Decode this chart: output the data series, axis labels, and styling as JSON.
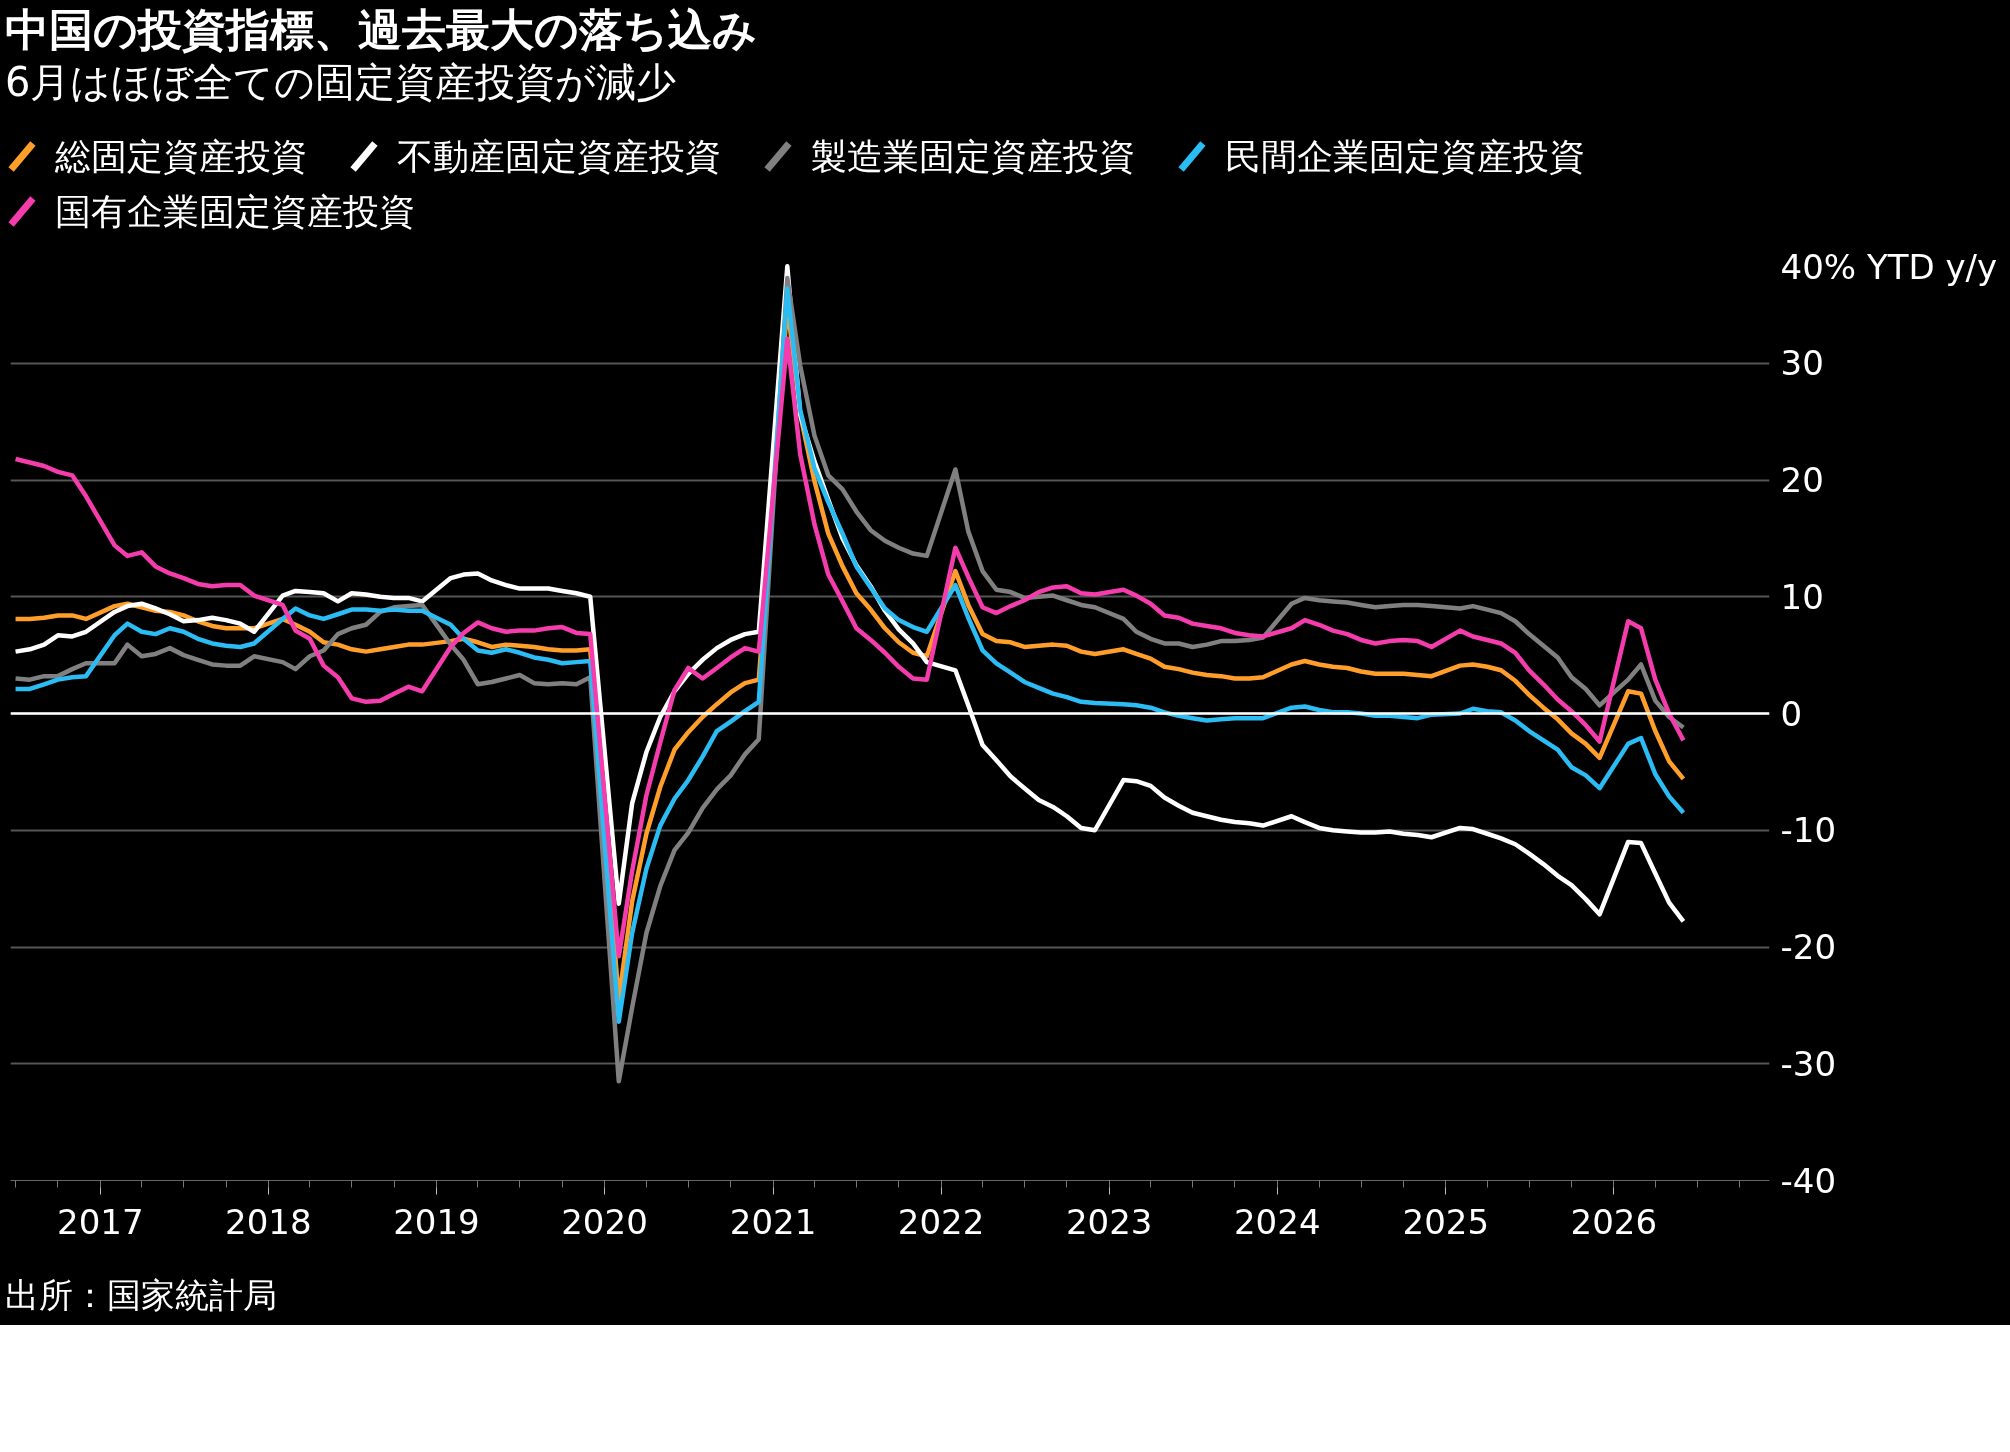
{
  "chart_data": {
    "type": "line",
    "title": "中国の投資指標、過去最大の落ち込み",
    "subtitle": "6月はほぼ全ての固定資産投資が減少",
    "annotations": [
      "出所：国家統計局"
    ],
    "x": [
      "2016-07",
      "2016-08",
      "2016-09",
      "2016-10",
      "2016-11",
      "2016-12",
      "2017-02",
      "2017-03",
      "2017-04",
      "2017-05",
      "2017-06",
      "2017-07",
      "2017-08",
      "2017-09",
      "2017-10",
      "2017-11",
      "2017-12",
      "2018-02",
      "2018-03",
      "2018-04",
      "2018-05",
      "2018-06",
      "2018-07",
      "2018-08",
      "2018-09",
      "2018-10",
      "2018-11",
      "2018-12",
      "2019-02",
      "2019-03",
      "2019-04",
      "2019-05",
      "2019-06",
      "2019-07",
      "2019-08",
      "2019-09",
      "2019-10",
      "2019-11",
      "2019-12",
      "2020-02",
      "2020-03",
      "2020-04",
      "2020-05",
      "2020-06",
      "2020-07",
      "2020-08",
      "2020-09",
      "2020-10",
      "2020-11",
      "2020-12",
      "2021-02",
      "2021-03",
      "2021-04",
      "2021-05",
      "2021-06",
      "2021-07",
      "2021-08",
      "2021-09",
      "2021-10",
      "2021-11",
      "2021-12",
      "2022-02",
      "2022-03",
      "2022-04",
      "2022-05",
      "2022-06",
      "2022-07",
      "2022-08",
      "2022-09",
      "2022-10",
      "2022-11",
      "2022-12",
      "2023-02",
      "2023-03",
      "2023-04",
      "2023-05",
      "2023-06",
      "2023-07",
      "2023-08",
      "2023-09",
      "2023-10",
      "2023-11",
      "2023-12",
      "2024-02",
      "2024-03",
      "2024-04",
      "2024-05",
      "2024-06",
      "2024-07",
      "2024-08",
      "2024-09",
      "2024-10",
      "2024-11",
      "2024-12",
      "2025-02",
      "2025-03",
      "2025-04",
      "2025-05",
      "2025-06",
      "2025-07",
      "2025-08",
      "2025-09",
      "2025-10",
      "2025-11",
      "2025-12",
      "2026-02",
      "2026-03",
      "2026-04",
      "2026-05",
      "2026-06"
    ],
    "series": [
      {
        "name": "総固定資産投資",
        "color": "#ff9f2a",
        "values": [
          8.1,
          8.1,
          8.2,
          8.4,
          8.4,
          8.1,
          9.2,
          9.4,
          9.1,
          8.8,
          8.7,
          8.4,
          7.9,
          7.5,
          7.3,
          7.3,
          7.3,
          8.1,
          7.6,
          7.0,
          6.1,
          5.9,
          5.5,
          5.3,
          5.5,
          5.7,
          5.9,
          5.9,
          6.2,
          6.4,
          6.1,
          5.7,
          5.9,
          5.8,
          5.7,
          5.5,
          5.4,
          5.4,
          5.5,
          -24.5,
          -16.1,
          -10.3,
          -6.3,
          -3.1,
          -1.6,
          -0.3,
          0.8,
          1.8,
          2.6,
          2.9,
          35.0,
          25.6,
          19.9,
          15.4,
          12.6,
          10.3,
          8.9,
          7.3,
          6.1,
          5.2,
          4.9,
          12.2,
          9.3,
          6.8,
          6.2,
          6.1,
          5.7,
          5.8,
          5.9,
          5.8,
          5.3,
          5.1,
          5.5,
          5.1,
          4.7,
          4.0,
          3.8,
          3.5,
          3.3,
          3.2,
          3.0,
          3.0,
          3.1,
          4.2,
          4.5,
          4.2,
          4.0,
          3.9,
          3.6,
          3.4,
          3.4,
          3.4,
          3.3,
          3.2,
          4.1,
          4.2,
          4.0,
          3.7,
          2.8,
          1.6,
          0.5,
          -0.5,
          -1.7,
          -2.6,
          -3.8,
          1.9,
          1.7,
          -1.5,
          -4.1,
          -5.6
        ]
      },
      {
        "name": "不動産固定資産投資",
        "color": "#ffffff",
        "values": [
          5.3,
          5.5,
          5.9,
          6.7,
          6.6,
          7.0,
          8.7,
          9.2,
          9.4,
          9.0,
          8.5,
          7.9,
          8.0,
          8.2,
          8.0,
          7.7,
          7.0,
          10.1,
          10.5,
          10.4,
          10.3,
          9.6,
          10.3,
          10.2,
          10.0,
          9.9,
          9.9,
          9.6,
          11.6,
          11.9,
          12.0,
          11.4,
          11.0,
          10.7,
          10.7,
          10.7,
          10.5,
          10.3,
          10.0,
          -16.3,
          -7.7,
          -3.3,
          -0.3,
          1.9,
          3.4,
          4.6,
          5.6,
          6.3,
          6.8,
          7.0,
          38.3,
          25.6,
          21.6,
          18.3,
          15.0,
          12.7,
          10.9,
          8.8,
          7.2,
          6.0,
          4.4,
          3.7,
          0.7,
          -2.7,
          -4.0,
          -5.4,
          -6.4,
          -7.4,
          -8.0,
          -8.8,
          -9.8,
          -10.0,
          -5.7,
          -5.8,
          -6.2,
          -7.2,
          -7.9,
          -8.5,
          -8.8,
          -9.1,
          -9.3,
          -9.4,
          -9.6,
          -8.8,
          -9.3,
          -9.8,
          -10.0,
          -10.1,
          -10.2,
          -10.2,
          -10.1,
          -10.3,
          -10.4,
          -10.6,
          -9.8,
          -9.9,
          -10.3,
          -10.7,
          -11.2,
          -12.0,
          -12.9,
          -13.9,
          -14.7,
          -15.9,
          -17.2,
          -11.0,
          -11.1,
          -13.7,
          -16.2,
          -17.8
        ]
      },
      {
        "name": "製造業固定資産投資",
        "color": "#808080",
        "values": [
          3.0,
          2.9,
          3.2,
          3.2,
          3.8,
          4.3,
          4.3,
          5.9,
          4.9,
          5.1,
          5.6,
          5.0,
          4.6,
          4.2,
          4.1,
          4.1,
          4.9,
          4.4,
          3.8,
          4.9,
          5.4,
          6.8,
          7.3,
          7.6,
          8.7,
          9.1,
          9.2,
          9.3,
          5.9,
          4.6,
          2.5,
          2.7,
          3.0,
          3.3,
          2.6,
          2.5,
          2.6,
          2.5,
          3.1,
          -31.5,
          -25.2,
          -18.8,
          -14.8,
          -11.7,
          -10.2,
          -8.1,
          -6.5,
          -5.3,
          -3.5,
          -2.2,
          37.3,
          29.8,
          23.8,
          20.4,
          19.2,
          17.3,
          15.7,
          14.8,
          14.2,
          13.7,
          13.5,
          20.9,
          15.6,
          12.2,
          10.6,
          10.4,
          9.9,
          10.0,
          10.1,
          9.7,
          9.3,
          9.1,
          8.1,
          7.0,
          6.4,
          6.0,
          6.0,
          5.7,
          5.9,
          6.2,
          6.2,
          6.3,
          6.5,
          9.4,
          9.9,
          9.7,
          9.6,
          9.5,
          9.3,
          9.1,
          9.2,
          9.3,
          9.3,
          9.2,
          9.0,
          9.2,
          8.9,
          8.6,
          7.9,
          6.8,
          5.8,
          4.8,
          3.1,
          2.1,
          0.7,
          2.9,
          4.2,
          1.1,
          -0.3,
          -1.2
        ]
      },
      {
        "name": "民間企業固定資産投資",
        "color": "#2bbcf4",
        "values": [
          2.1,
          2.1,
          2.5,
          2.9,
          3.1,
          3.2,
          6.7,
          7.7,
          7.0,
          6.8,
          7.3,
          7.0,
          6.4,
          6.0,
          5.8,
          5.7,
          6.0,
          8.1,
          9.0,
          8.4,
          8.1,
          8.5,
          8.9,
          8.9,
          8.8,
          8.9,
          8.8,
          8.8,
          7.6,
          6.4,
          5.4,
          5.2,
          5.5,
          5.2,
          4.8,
          4.6,
          4.3,
          4.4,
          4.5,
          -26.4,
          -18.8,
          -13.3,
          -9.6,
          -7.3,
          -5.7,
          -3.7,
          -1.5,
          -0.7,
          0.2,
          1.0,
          36.4,
          26.0,
          21.0,
          18.1,
          15.4,
          12.6,
          10.8,
          9.0,
          8.0,
          7.4,
          7.0,
          11.0,
          8.2,
          5.4,
          4.3,
          3.5,
          2.7,
          2.2,
          1.7,
          1.4,
          1.0,
          0.9,
          0.8,
          0.7,
          0.5,
          0.1,
          -0.2,
          -0.4,
          -0.6,
          -0.5,
          -0.4,
          -0.4,
          -0.4,
          0.5,
          0.6,
          0.3,
          0.1,
          0.1,
          0.0,
          -0.2,
          -0.2,
          -0.3,
          -0.4,
          -0.1,
          0.0,
          0.4,
          0.2,
          0.1,
          -0.6,
          -1.5,
          -2.3,
          -3.1,
          -4.6,
          -5.3,
          -6.4,
          -2.6,
          -2.1,
          -5.2,
          -7.1,
          -8.5
        ]
      },
      {
        "name": "国有企業固定資産投資",
        "color": "#f43cac",
        "values": [
          21.8,
          21.5,
          21.2,
          20.7,
          20.4,
          18.6,
          14.4,
          13.5,
          13.8,
          12.6,
          12.0,
          11.6,
          11.1,
          10.9,
          11.0,
          11.0,
          10.1,
          9.3,
          7.1,
          6.4,
          4.1,
          3.1,
          1.3,
          1.0,
          1.1,
          1.7,
          2.3,
          1.9,
          5.7,
          6.9,
          7.8,
          7.3,
          7.0,
          7.1,
          7.1,
          7.3,
          7.4,
          6.9,
          6.8,
          -20.8,
          -13.5,
          -7.0,
          -2.5,
          2.0,
          3.9,
          3.0,
          3.9,
          4.8,
          5.6,
          5.3,
          32.1,
          22.2,
          16.2,
          11.9,
          9.6,
          7.3,
          6.3,
          5.2,
          4.0,
          3.0,
          2.9,
          14.2,
          11.7,
          9.1,
          8.6,
          9.2,
          9.7,
          10.4,
          10.8,
          10.9,
          10.3,
          10.2,
          10.6,
          10.1,
          9.4,
          8.4,
          8.2,
          7.7,
          7.5,
          7.3,
          6.9,
          6.7,
          6.6,
          7.3,
          8.0,
          7.6,
          7.1,
          6.8,
          6.3,
          6.0,
          6.2,
          6.3,
          6.2,
          5.7,
          7.1,
          6.6,
          6.3,
          6.0,
          5.2,
          3.7,
          2.5,
          1.2,
          0.2,
          -1.0,
          -2.4,
          7.9,
          7.3,
          2.9,
          0.0,
          -2.3
        ]
      }
    ],
    "xlim": [
      "2016-06-20",
      "2026-12-05"
    ],
    "xticks": [
      "2017",
      "2018",
      "2019",
      "2020",
      "2021",
      "2022",
      "2023",
      "2024",
      "2025",
      "2026"
    ],
    "ylim": [
      -40,
      40
    ],
    "yticks": [
      -40,
      -30,
      -20,
      -10,
      0,
      10,
      20,
      30,
      {
        "value": 40,
        "label": "40% YTD y/y"
      }
    ],
    "ref_lines": [
      {
        "axis": "y",
        "value": 0,
        "color": "#ffffff"
      }
    ],
    "grid": "y",
    "legend": "top",
    "line_style": "solid"
  }
}
